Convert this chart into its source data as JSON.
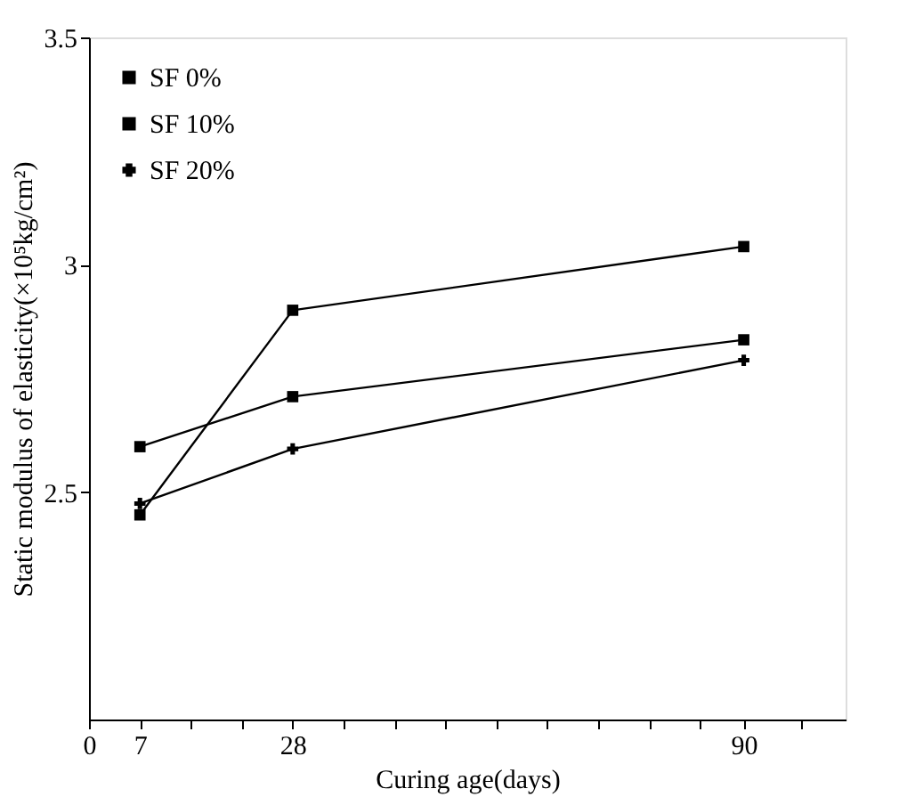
{
  "chart_data": {
    "type": "line",
    "xlabel": "Curing age(days)",
    "ylabel": "Static modulus of elasticity(×10⁵kg/cm²)",
    "x": [
      7,
      28,
      90
    ],
    "series": [
      {
        "name": "SF 0%",
        "color": "#000000",
        "marker": "square",
        "values": [
          2.45,
          2.9,
          3.04
        ]
      },
      {
        "name": "SF 10%",
        "color": "#000000",
        "marker": "square",
        "values": [
          2.6,
          2.71,
          2.835
        ]
      },
      {
        "name": "SF 20%",
        "color": "#000000",
        "marker": "cross",
        "values": [
          2.475,
          2.595,
          2.79
        ]
      }
    ],
    "xlim": [
      0,
      104
    ],
    "xticks": [
      0,
      7,
      {
        "value": 14,
        "label": null
      },
      {
        "value": 21,
        "label": null
      },
      28,
      {
        "value": 35,
        "label": null
      },
      {
        "value": 42,
        "label": null
      },
      {
        "value": 49,
        "label": null
      },
      {
        "value": 56,
        "label": null
      },
      {
        "value": 63,
        "label": null
      },
      {
        "value": 70,
        "label": null
      },
      {
        "value": 77,
        "label": null
      },
      {
        "value": 84,
        "label": null
      },
      90,
      {
        "value": 98,
        "label": null
      }
    ],
    "ylim": [
      2.0,
      3.5
    ],
    "yticks": [
      2.5,
      3,
      3.5
    ],
    "grid": false,
    "legend": "top left",
    "line_style": "solid"
  }
}
